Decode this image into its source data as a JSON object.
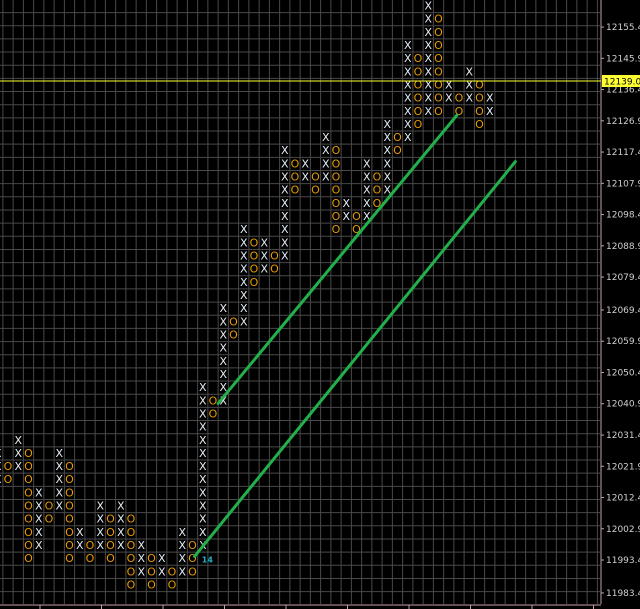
{
  "chart_data": {
    "type": "point-and-figure",
    "box_size": 4.0,
    "colors": {
      "background": "#000000",
      "grid": "#4a4a4a",
      "x_mark": "#e4ecf4",
      "o_mark": "#e89a00",
      "trendline": "#22b04a",
      "current_price_line": "#ffff33",
      "axis": "#c8a0a8",
      "month_marker": "#22b0c8"
    },
    "y_axis": {
      "ticks": [
        "12155.4",
        "12145.9",
        "12136.4",
        "12126.9",
        "12117.4",
        "12107.9",
        "12098.4",
        "12088.9",
        "12079.4",
        "12069.4",
        "12059.9",
        "12050.4",
        "12040.9",
        "12031.4",
        "12021.9",
        "12012.4",
        "12002.9",
        "11993.4",
        "11983.4"
      ],
      "range": [
        11983.4,
        12161.8
      ]
    },
    "current_price": {
      "value": 12139.0,
      "label": "12139.0"
    },
    "month_marker": {
      "label": "14",
      "column": 20,
      "price": 11993.8
    },
    "columns": [
      {
        "type": "X",
        "high": 12025.8,
        "low": 12017.8
      },
      {
        "type": "O",
        "high": 12021.8,
        "low": 12017.8
      },
      {
        "type": "X",
        "high": 12029.8,
        "low": 12021.8
      },
      {
        "type": "O",
        "high": 12025.8,
        "low": 11993.8
      },
      {
        "type": "X",
        "high": 12013.8,
        "low": 11997.8
      },
      {
        "type": "O",
        "high": 12009.8,
        "low": 12005.8
      },
      {
        "type": "X",
        "high": 12025.8,
        "low": 12009.8
      },
      {
        "type": "O",
        "high": 12021.8,
        "low": 11993.8
      },
      {
        "type": "X",
        "high": 12001.8,
        "low": 11997.8
      },
      {
        "type": "O",
        "high": 11997.8,
        "low": 11993.8
      },
      {
        "type": "X",
        "high": 12009.8,
        "low": 11997.8
      },
      {
        "type": "O",
        "high": 12005.8,
        "low": 11993.8
      },
      {
        "type": "X",
        "high": 12009.8,
        "low": 11997.8
      },
      {
        "type": "O",
        "high": 12005.8,
        "low": 11985.8
      },
      {
        "type": "X",
        "high": 11997.8,
        "low": 11989.8
      },
      {
        "type": "O",
        "high": 11993.8,
        "low": 11985.8
      },
      {
        "type": "X",
        "high": 11993.8,
        "low": 11989.8
      },
      {
        "type": "O",
        "high": 11989.8,
        "low": 11985.8
      },
      {
        "type": "X",
        "high": 12001.8,
        "low": 11989.8
      },
      {
        "type": "O",
        "high": 11997.8,
        "low": 11989.8
      },
      {
        "type": "X",
        "high": 12045.8,
        "low": 11997.8
      },
      {
        "type": "O",
        "high": 12041.8,
        "low": 12037.8
      },
      {
        "type": "X",
        "high": 12069.8,
        "low": 12041.8
      },
      {
        "type": "O",
        "high": 12065.8,
        "low": 12061.8
      },
      {
        "type": "X",
        "high": 12093.8,
        "low": 12065.8
      },
      {
        "type": "O",
        "high": 12089.8,
        "low": 12077.8
      },
      {
        "type": "X",
        "high": 12089.8,
        "low": 12081.8
      },
      {
        "type": "O",
        "high": 12085.8,
        "low": 12081.8
      },
      {
        "type": "X",
        "high": 12117.8,
        "low": 12085.8
      },
      {
        "type": "O",
        "high": 12113.8,
        "low": 12105.8
      },
      {
        "type": "X",
        "high": 12113.8,
        "low": 12109.8
      },
      {
        "type": "O",
        "high": 12109.8,
        "low": 12105.8
      },
      {
        "type": "X",
        "high": 12121.8,
        "low": 12109.8
      },
      {
        "type": "O",
        "high": 12117.8,
        "low": 12093.8
      },
      {
        "type": "X",
        "high": 12101.8,
        "low": 12097.8
      },
      {
        "type": "O",
        "high": 12097.8,
        "low": 12093.8
      },
      {
        "type": "X",
        "high": 12113.8,
        "low": 12097.8
      },
      {
        "type": "O",
        "high": 12109.8,
        "low": 12101.8
      },
      {
        "type": "X",
        "high": 12125.8,
        "low": 12105.8
      },
      {
        "type": "O",
        "high": 12121.8,
        "low": 12117.8
      },
      {
        "type": "X",
        "high": 12149.8,
        "low": 12121.8
      },
      {
        "type": "O",
        "high": 12145.8,
        "low": 12125.8
      },
      {
        "type": "X",
        "high": 12161.8,
        "low": 12129.8
      },
      {
        "type": "O",
        "high": 12157.8,
        "low": 12129.8
      },
      {
        "type": "X",
        "high": 12137.8,
        "low": 12133.8
      },
      {
        "type": "O",
        "high": 12133.8,
        "low": 12129.8
      },
      {
        "type": "X",
        "high": 12141.8,
        "low": 12133.8
      },
      {
        "type": "O",
        "high": 12137.8,
        "low": 12125.8
      },
      {
        "type": "X",
        "high": 12133.8,
        "low": 12129.8
      }
    ],
    "trendlines": [
      {
        "from": {
          "column": 21.5,
          "price": 12041.0
        },
        "to": {
          "column": 44.8,
          "price": 12128.6
        }
      },
      {
        "from": {
          "column": 19.2,
          "price": 11994.5
        },
        "to": {
          "column": 50.5,
          "price": 12114.5
        }
      }
    ],
    "grid": true
  }
}
